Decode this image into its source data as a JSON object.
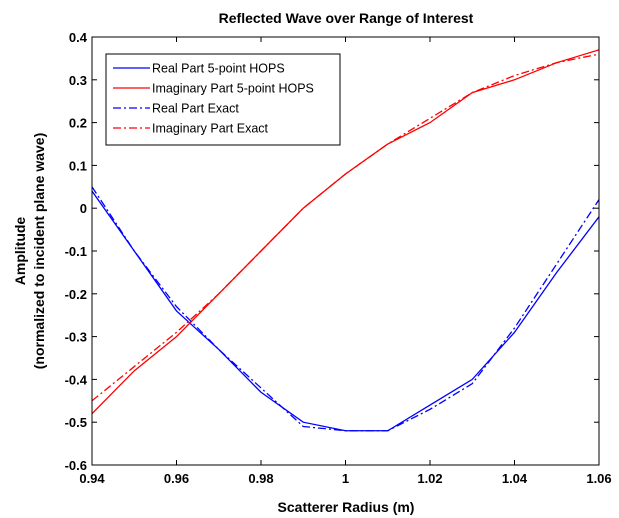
{
  "chart_data": {
    "type": "line",
    "title": "Reflected Wave over Range of Interest",
    "xlabel": "Scatterer Radius (m)",
    "ylabel_line1": "Amplitude",
    "ylabel_line2": "(normalized to incident plane wave)",
    "xlim": [
      0.94,
      1.06
    ],
    "ylim": [
      -0.6,
      0.4
    ],
    "x_ticks": [
      0.94,
      0.96,
      0.98,
      1,
      1.02,
      1.04,
      1.06
    ],
    "x_tick_labels": [
      "0.94",
      "0.96",
      "0.98",
      "1",
      "1.02",
      "1.04",
      "1.06"
    ],
    "y_ticks": [
      0.4,
      0.3,
      0.2,
      0.1,
      0,
      -0.1,
      -0.2,
      -0.3,
      -0.4,
      -0.5,
      -0.6
    ],
    "y_tick_labels": [
      "0.4",
      "0.3",
      "0.2",
      "0.1",
      "0",
      "-0.1",
      "-0.2",
      "-0.3",
      "-0.4",
      "-0.5",
      "-0.6"
    ],
    "grid": false,
    "legend_position": "top-left",
    "series": [
      {
        "name": "Real Part 5-point HOPS",
        "color": "#0000ff",
        "dash": "solid",
        "x": [
          0.94,
          0.95,
          0.96,
          0.97,
          0.98,
          0.99,
          1.0,
          1.01,
          1.02,
          1.03,
          1.04,
          1.05,
          1.06
        ],
        "y": [
          0.04,
          -0.1,
          -0.24,
          -0.33,
          -0.43,
          -0.5,
          -0.52,
          -0.52,
          -0.46,
          -0.4,
          -0.29,
          -0.15,
          -0.02
        ]
      },
      {
        "name": "Imaginary Part 5-point HOPS",
        "color": "#ff0000",
        "dash": "solid",
        "x": [
          0.94,
          0.95,
          0.96,
          0.97,
          0.98,
          0.99,
          1.0,
          1.01,
          1.02,
          1.03,
          1.04,
          1.05,
          1.06
        ],
        "y": [
          -0.48,
          -0.38,
          -0.3,
          -0.2,
          -0.1,
          0.0,
          0.08,
          0.15,
          0.2,
          0.27,
          0.3,
          0.34,
          0.37
        ]
      },
      {
        "name": "Real Part Exact",
        "color": "#0000ff",
        "dash": "dashdot",
        "x": [
          0.94,
          0.95,
          0.96,
          0.97,
          0.98,
          0.99,
          1.0,
          1.01,
          1.02,
          1.03,
          1.04,
          1.05,
          1.06
        ],
        "y": [
          0.05,
          -0.1,
          -0.23,
          -0.33,
          -0.42,
          -0.51,
          -0.52,
          -0.52,
          -0.47,
          -0.41,
          -0.28,
          -0.13,
          0.02
        ]
      },
      {
        "name": "Imaginary Part Exact",
        "color": "#ff0000",
        "dash": "dashdot",
        "x": [
          0.94,
          0.95,
          0.96,
          0.97,
          0.98,
          0.99,
          1.0,
          1.01,
          1.02,
          1.03,
          1.04,
          1.05,
          1.06
        ],
        "y": [
          -0.45,
          -0.37,
          -0.29,
          -0.2,
          -0.1,
          0.0,
          0.08,
          0.15,
          0.21,
          0.27,
          0.31,
          0.34,
          0.36
        ]
      }
    ]
  }
}
